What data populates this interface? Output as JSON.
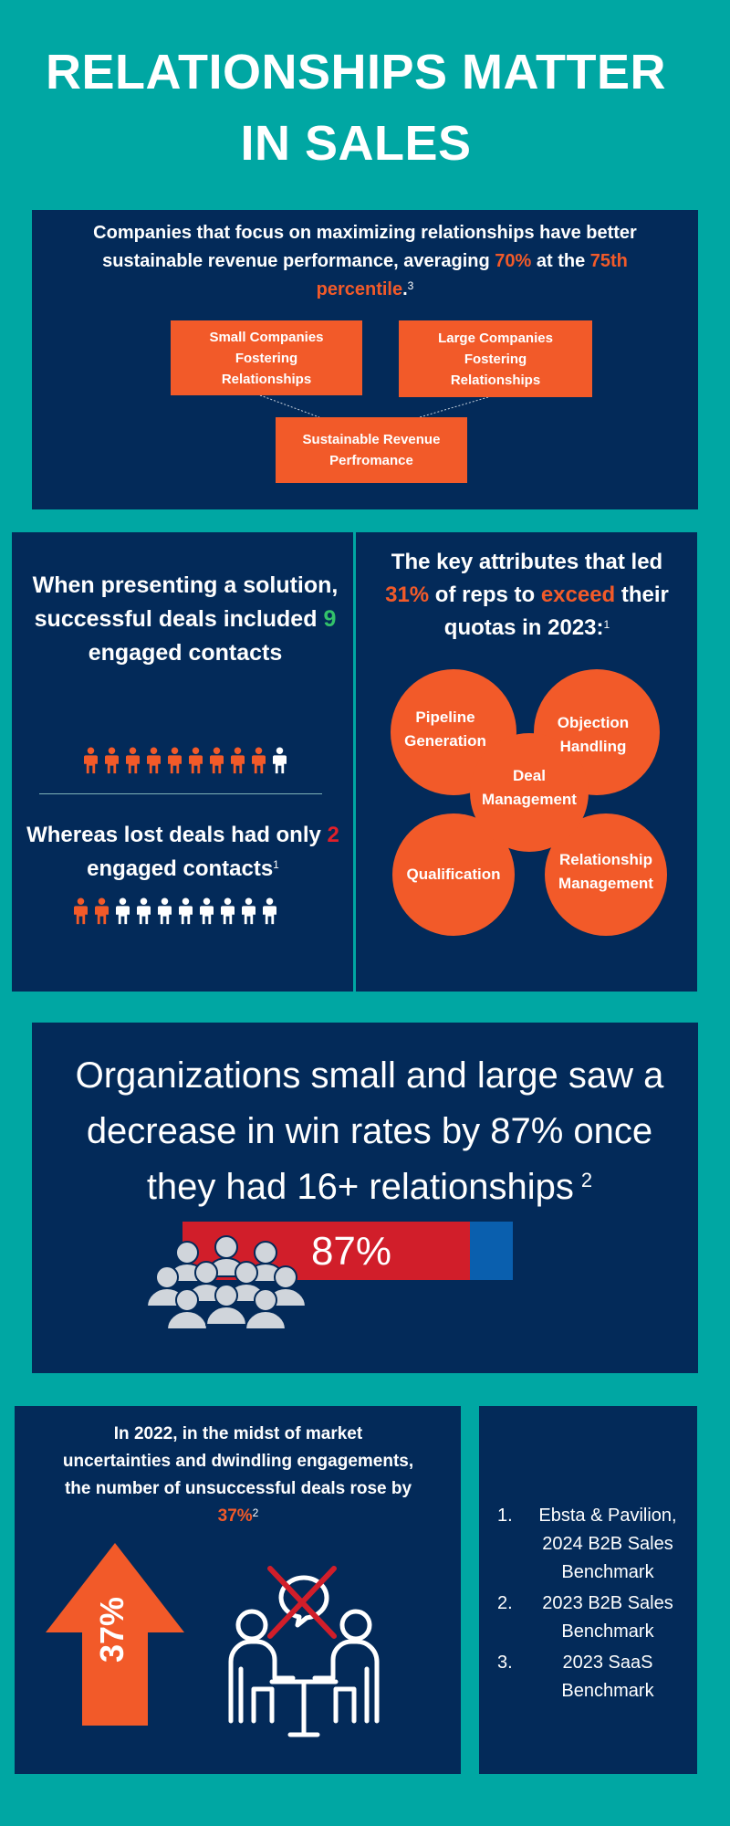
{
  "header": {
    "line1": "RELATIONSHIPS MATTER",
    "line2": "IN SALES"
  },
  "colors": {
    "background": "#00a7a3",
    "panel": "#032a59",
    "accent": "#f25a29",
    "red": "#d11e2a",
    "blue": "#0a5fae",
    "green": "#33c26a"
  },
  "panel1": {
    "text_a": "Companies that focus on maximizing relationships have better sustainable revenue performance, averaging ",
    "highlight_a": "70%",
    "text_b": " at the ",
    "highlight_b": "75th percentile",
    "text_c": ".",
    "footnote": "3",
    "boxes": {
      "small": "Small Companies Fostering Relationships",
      "large": "Large Companies Fostering Relationships",
      "revenue": "Sustainable Revenue Perfromance"
    }
  },
  "panel2a": {
    "top_text": "When presenting a solution,  successful deals included ",
    "top_number": "9",
    "top_text_end": " engaged contacts",
    "won_people": {
      "engaged": 9,
      "total": 10
    },
    "bottom_text": "Whereas lost  deals had only ",
    "bottom_number": "2",
    "bottom_text_end": " engaged contacts",
    "footnote": "1",
    "lost_people": {
      "engaged": 2,
      "total": 10
    }
  },
  "panel2b": {
    "title_a": "The key attributes that led ",
    "title_pct": "31%",
    "title_b": " of reps to ",
    "title_exceed": "exceed",
    "title_c": " their quotas in 2023:",
    "footnote": "1",
    "attributes": {
      "pipeline": "Pipeline Generation",
      "objection": "Objection Handling",
      "deal": "Deal Management",
      "qualification": "Qualification",
      "relationship": "Relationship Management"
    }
  },
  "panel3": {
    "text": "Organizations small and large saw a decrease in win rates by 87% once they had 16+ relationships",
    "footnote": "2",
    "bar_label": "87%",
    "bar_fraction": 0.87
  },
  "panel4a": {
    "text_a": "In 2022, in the midst of market uncertainties and dwindling engagements, the number of unsuccessful deals rose by ",
    "highlight": "37%",
    "footnote": "2",
    "arrow_label": "37%"
  },
  "references": [
    {
      "num": "1.",
      "text": "Ebsta & Pavilion, 2024 B2B Sales Benchmark"
    },
    {
      "num": "2.",
      "text": "2023 B2B Sales Benchmark"
    },
    {
      "num": "3.",
      "text": "2023 SaaS Benchmark"
    }
  ]
}
